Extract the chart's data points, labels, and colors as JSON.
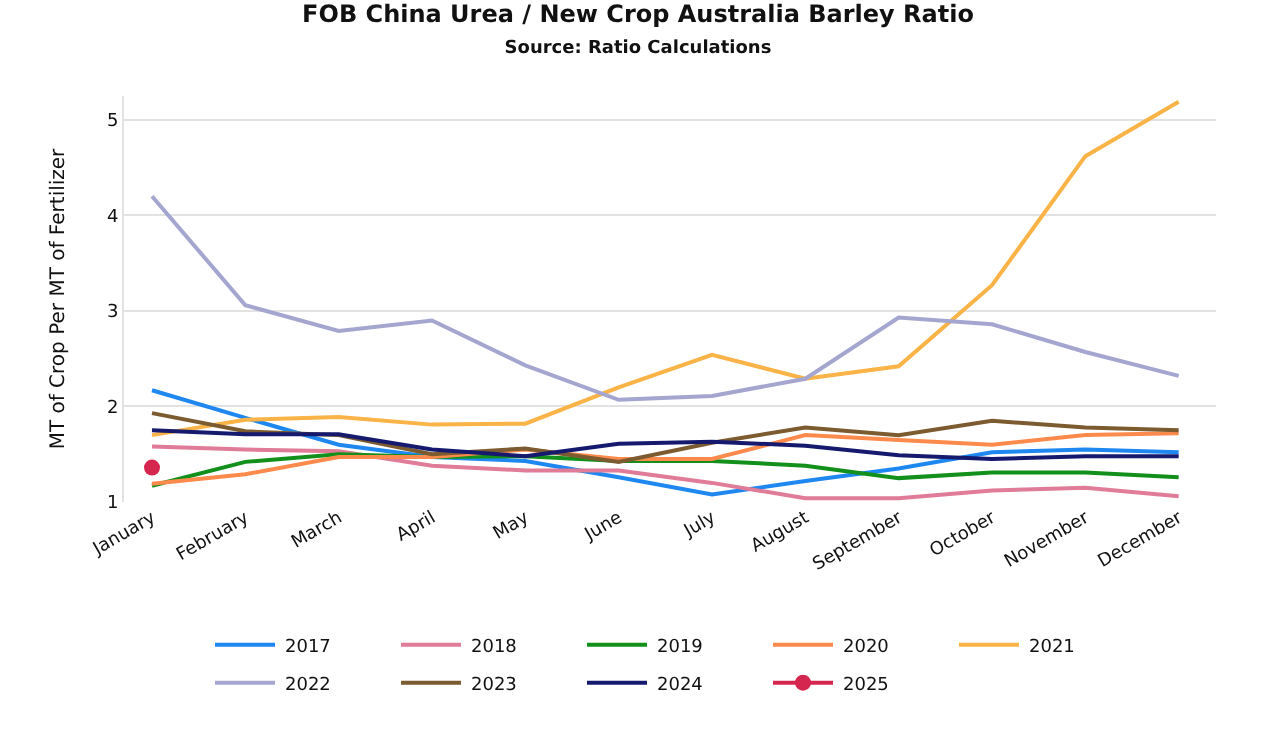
{
  "chart_data": {
    "type": "line",
    "title": "FOB China Urea / New Crop Australia Barley Ratio",
    "subtitle": "Source: Ratio Calculations",
    "ylabel": "MT of Crop Per MT of Fertilizer",
    "categories": [
      "January",
      "February",
      "March",
      "April",
      "May",
      "June",
      "July",
      "August",
      "September",
      "October",
      "November",
      "December"
    ],
    "series": [
      {
        "name": "2017",
        "color": "#1e88f0",
        "values": [
          2.17,
          1.88,
          1.6,
          1.47,
          1.43,
          1.26,
          1.08,
          1.22,
          1.35,
          1.52,
          1.55,
          1.52
        ]
      },
      {
        "name": "2018",
        "color": "#e07b98",
        "values": [
          1.58,
          1.55,
          1.53,
          1.38,
          1.33,
          1.33,
          1.2,
          1.04,
          1.04,
          1.12,
          1.15,
          1.06
        ]
      },
      {
        "name": "2019",
        "color": "#13901b",
        "values": [
          1.17,
          1.42,
          1.5,
          1.47,
          1.48,
          1.43,
          1.43,
          1.38,
          1.25,
          1.31,
          1.31,
          1.26
        ]
      },
      {
        "name": "2020",
        "color": "#fb8a4c",
        "values": [
          1.19,
          1.29,
          1.47,
          1.47,
          1.55,
          1.45,
          1.45,
          1.7,
          1.65,
          1.6,
          1.7,
          1.72
        ]
      },
      {
        "name": "2021",
        "color": "#f9b347",
        "values": [
          1.7,
          1.86,
          1.89,
          1.81,
          1.82,
          2.2,
          2.54,
          2.29,
          2.42,
          3.27,
          4.62,
          5.19
        ]
      },
      {
        "name": "2022",
        "color": "#a4a6d0",
        "values": [
          4.2,
          3.06,
          2.79,
          2.9,
          2.43,
          2.07,
          2.11,
          2.29,
          2.93,
          2.86,
          2.57,
          2.32
        ]
      },
      {
        "name": "2023",
        "color": "#7b5b2f",
        "values": [
          1.93,
          1.74,
          1.7,
          1.5,
          1.56,
          1.42,
          1.62,
          1.78,
          1.7,
          1.85,
          1.78,
          1.75
        ]
      },
      {
        "name": "2024",
        "color": "#151a6e",
        "values": [
          1.75,
          1.71,
          1.71,
          1.55,
          1.48,
          1.61,
          1.63,
          1.59,
          1.49,
          1.45,
          1.48,
          1.48
        ]
      },
      {
        "name": "2025",
        "color": "#d4264f",
        "marker": "circle",
        "values": [
          1.36,
          null,
          null,
          null,
          null,
          null,
          null,
          null,
          null,
          null,
          null,
          null
        ]
      }
    ],
    "ylim": [
      1,
      5.25
    ],
    "yticks": [
      1,
      2,
      3,
      4,
      5
    ],
    "grid": "y",
    "legend": "bottom",
    "marker": "none"
  }
}
